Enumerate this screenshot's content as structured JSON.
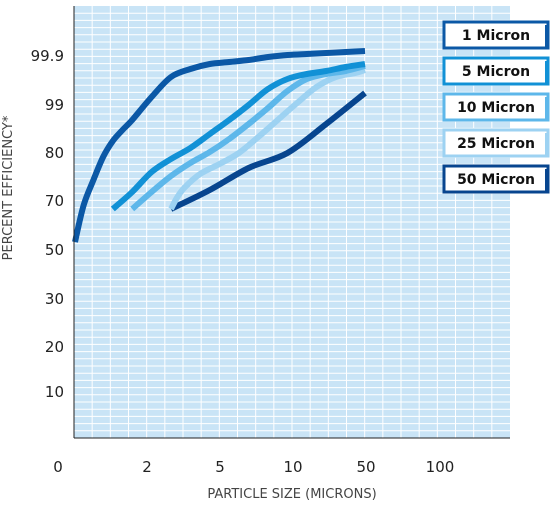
{
  "chart_data": {
    "type": "line",
    "title": "",
    "xlabel": "PARTICLE SIZE (MICRONS)",
    "ylabel": "PERCENT EFFICIENCY*",
    "x_ticks": [
      "0",
      "2",
      "5",
      "10",
      "50",
      "100"
    ],
    "y_ticks": [
      "10",
      "20",
      "30",
      "50",
      "70",
      "80",
      "99",
      "99.9"
    ],
    "grid": true,
    "legend_position": "top-right",
    "colors": {
      "plot_background": "#c9e4f6",
      "grid": "#ffffff",
      "axis": "#222222",
      "legend_border": "#1f5aa0"
    },
    "series": [
      {
        "name": "1 Micron",
        "color": "#0b58a6",
        "points": [
          [
            0.05,
            52
          ],
          [
            0.5,
            66
          ],
          [
            1.0,
            74
          ],
          [
            1.5,
            79
          ],
          [
            2.0,
            82.5
          ],
          [
            2.5,
            85
          ],
          [
            3.0,
            87.5
          ],
          [
            4.0,
            93
          ],
          [
            5.0,
            98
          ],
          [
            6.0,
            99.4
          ],
          [
            7.0,
            99.7
          ],
          [
            8.0,
            99.85
          ],
          [
            9.0,
            99.95
          ],
          [
            10.0,
            100.05
          ],
          [
            11.0,
            100.12
          ],
          [
            12.0,
            100.15
          ],
          [
            13.0,
            100.18
          ],
          [
            14.0,
            100.2
          ],
          [
            15.0,
            100.22
          ]
        ]
      },
      {
        "name": "5 Micron",
        "color": "#1191d6",
        "points": [
          [
            2.0,
            67.5
          ],
          [
            3.0,
            71.5
          ],
          [
            4.0,
            75.5
          ],
          [
            5.0,
            78.5
          ],
          [
            6.0,
            81
          ],
          [
            7.0,
            84
          ],
          [
            8.0,
            87.5
          ],
          [
            9.0,
            91
          ],
          [
            10.0,
            95
          ],
          [
            11.0,
            97.5
          ],
          [
            12.0,
            98.8
          ],
          [
            13.0,
            99.25
          ],
          [
            14.0,
            99.5
          ],
          [
            15.0,
            99.7
          ]
        ]
      },
      {
        "name": "10 Micron",
        "color": "#5db7ea",
        "points": [
          [
            3.0,
            67.5
          ],
          [
            4.0,
            71.5
          ],
          [
            5.0,
            74.8
          ],
          [
            6.0,
            77.7
          ],
          [
            7.0,
            80.2
          ],
          [
            8.0,
            83
          ],
          [
            9.0,
            86.5
          ],
          [
            10.0,
            90.5
          ],
          [
            11.0,
            94.5
          ],
          [
            12.0,
            97.5
          ],
          [
            13.0,
            98.8
          ],
          [
            14.0,
            99.25
          ],
          [
            15.0,
            99.55
          ]
        ]
      },
      {
        "name": "25 Micron",
        "color": "#9dd2f2",
        "points": [
          [
            5.0,
            67.5
          ],
          [
            5.3,
            70.5
          ],
          [
            5.7,
            72.5
          ],
          [
            6.5,
            75
          ],
          [
            7.5,
            77.5
          ],
          [
            8.5,
            80
          ],
          [
            9.5,
            83.5
          ],
          [
            10.5,
            87.5
          ],
          [
            11.5,
            91.5
          ],
          [
            12.5,
            95.5
          ],
          [
            13.5,
            98
          ],
          [
            14.5,
            99.05
          ],
          [
            15.0,
            99.35
          ]
        ]
      },
      {
        "name": "50 Micron",
        "color": "#07458f",
        "points": [
          [
            5.0,
            67.5
          ],
          [
            7.0,
            72
          ],
          [
            9.0,
            76.5
          ],
          [
            11.0,
            80
          ],
          [
            13.0,
            86.5
          ],
          [
            15.0,
            94
          ]
        ]
      }
    ]
  }
}
